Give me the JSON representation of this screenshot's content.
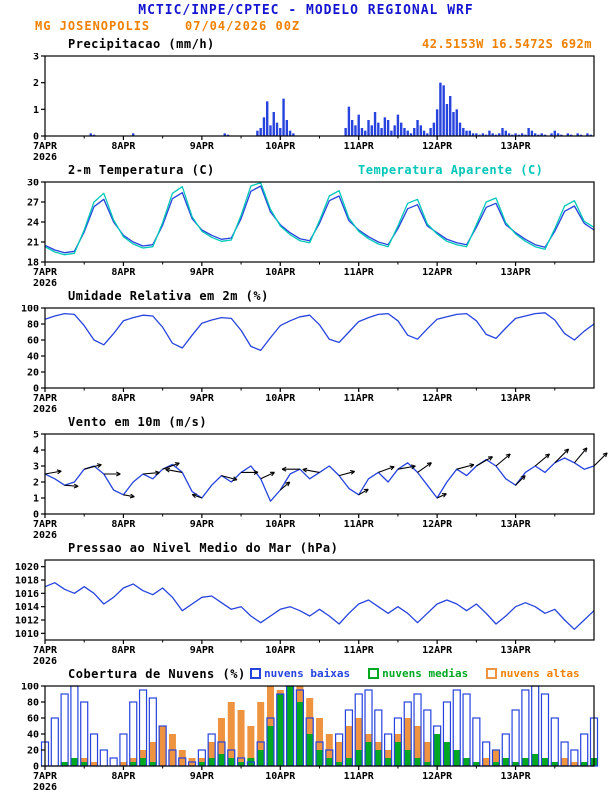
{
  "header": {
    "title": "MCTIC/INPE/CPTEC - MODELO REGIONAL WRF",
    "station": "MG JOSENOPOLIS",
    "run": "07/04/2026 00Z",
    "location": "42.5153W 16.5472S 692m"
  },
  "colors": {
    "title": "#1414d2",
    "accent_orange": "#f08000",
    "line_blue": "#2743de",
    "apparent_cyan": "#00c8b9",
    "cloud_low": "#2743de",
    "cloud_mid": "#00a822",
    "cloud_high": "#ee9440",
    "arrow_black": "#000000"
  },
  "x_axis": {
    "range": [
      0,
      168
    ],
    "tick_hours": [
      0,
      24,
      48,
      72,
      96,
      120,
      144
    ],
    "labels": [
      "7APR",
      "8APR",
      "9APR",
      "10APR",
      "11APR",
      "12APR",
      "13APR"
    ],
    "year_label": "2026"
  },
  "chart_data": [
    {
      "id": "precipitation",
      "type": "bar",
      "title": "Precipitacao (mm/h)",
      "ylim": [
        0,
        3
      ],
      "yticks": [
        0,
        1,
        2,
        3
      ],
      "x_step_hours": 1,
      "color_key": "line_blue",
      "values": [
        0,
        0,
        0,
        0,
        0,
        0,
        0,
        0,
        0,
        0,
        0,
        0,
        0,
        0,
        0.1,
        0.05,
        0,
        0,
        0,
        0,
        0,
        0,
        0,
        0,
        0,
        0,
        0,
        0.1,
        0,
        0,
        0,
        0,
        0,
        0,
        0,
        0,
        0,
        0,
        0,
        0,
        0,
        0,
        0,
        0,
        0,
        0,
        0,
        0,
        0,
        0,
        0,
        0,
        0,
        0,
        0,
        0.1,
        0.05,
        0,
        0,
        0,
        0,
        0,
        0,
        0,
        0,
        0.2,
        0.3,
        0.7,
        1.3,
        0.4,
        0.9,
        0.5,
        0.3,
        1.4,
        0.6,
        0.2,
        0.1,
        0,
        0,
        0,
        0,
        0,
        0,
        0,
        0,
        0,
        0,
        0,
        0,
        0,
        0,
        0,
        0.3,
        1.1,
        0.6,
        0.4,
        0.8,
        0.3,
        0.2,
        0.6,
        0.4,
        0.9,
        0.5,
        0.3,
        0.7,
        0.6,
        0.2,
        0.4,
        0.8,
        0.5,
        0.3,
        0.2,
        0.1,
        0.3,
        0.6,
        0.4,
        0.2,
        0.1,
        0.3,
        0.5,
        1.0,
        2.0,
        1.9,
        1.2,
        1.5,
        0.9,
        1.0,
        0.5,
        0.3,
        0.2,
        0.2,
        0.1,
        0.1,
        0.05,
        0.1,
        0.05,
        0.2,
        0.1,
        0.05,
        0.1,
        0.3,
        0.2,
        0.1,
        0.05,
        0.1,
        0.05,
        0.1,
        0.05,
        0.3,
        0.2,
        0.1,
        0.05,
        0.1,
        0.05,
        0,
        0.1,
        0.2,
        0.1,
        0.05,
        0,
        0.1,
        0.05,
        0,
        0.1,
        0.05,
        0,
        0.1,
        0.05,
        0
      ]
    },
    {
      "id": "temperature",
      "type": "line",
      "title": "2-m Temperatura (C)",
      "ylim": [
        18,
        30
      ],
      "yticks": [
        18,
        21,
        24,
        27,
        30
      ],
      "x_step_hours": 3,
      "series": [
        {
          "name": "2-m Temperatura (C)",
          "color_key": "line_blue",
          "values": [
            20.5,
            19.8,
            19.4,
            19.6,
            22.5,
            26.3,
            27.4,
            24.0,
            22.0,
            21.0,
            20.4,
            20.6,
            23.5,
            27.5,
            28.4,
            24.5,
            22.8,
            22.0,
            21.4,
            21.6,
            24.5,
            28.6,
            29.4,
            25.5,
            23.6,
            22.4,
            21.5,
            21.2,
            23.8,
            27.2,
            27.9,
            24.2,
            22.8,
            21.8,
            21.0,
            20.6,
            23.0,
            26.0,
            26.6,
            23.4,
            22.4,
            21.4,
            20.9,
            20.6,
            23.2,
            26.2,
            26.8,
            23.6,
            22.4,
            21.4,
            20.6,
            20.2,
            22.6,
            25.6,
            26.4,
            23.8,
            22.8
          ]
        },
        {
          "name": "Temperatura Aparente (C)",
          "color_key": "apparent_cyan",
          "values": [
            20.3,
            19.5,
            19.1,
            19.3,
            22.8,
            27.0,
            28.3,
            24.3,
            21.8,
            20.7,
            20.1,
            20.3,
            23.9,
            28.3,
            29.3,
            24.8,
            22.6,
            21.7,
            21.1,
            21.3,
            25.0,
            29.4,
            29.9,
            25.9,
            23.4,
            22.1,
            21.2,
            20.9,
            24.2,
            27.9,
            28.7,
            24.6,
            22.6,
            21.5,
            20.7,
            20.3,
            23.4,
            26.8,
            27.4,
            23.7,
            22.2,
            21.1,
            20.6,
            20.3,
            23.6,
            27.0,
            27.6,
            23.9,
            22.2,
            21.1,
            20.3,
            19.9,
            23.0,
            26.4,
            27.2,
            24.1,
            23.2
          ]
        }
      ]
    },
    {
      "id": "humidity",
      "type": "line",
      "title": "Umidade Relativa em 2m (%)",
      "ylim": [
        0,
        100
      ],
      "yticks": [
        0,
        20,
        40,
        60,
        80,
        100
      ],
      "x_step_hours": 3,
      "series": [
        {
          "name": "Umidade Relativa em 2m (%)",
          "color_key": "line_blue",
          "values": [
            86,
            90,
            93,
            92,
            78,
            60,
            54,
            68,
            84,
            88,
            91,
            90,
            76,
            56,
            50,
            66,
            81,
            85,
            88,
            87,
            72,
            52,
            47,
            63,
            78,
            84,
            89,
            91,
            79,
            61,
            57,
            70,
            83,
            88,
            92,
            93,
            84,
            66,
            61,
            74,
            86,
            89,
            92,
            93,
            84,
            67,
            62,
            75,
            87,
            90,
            93,
            94,
            85,
            68,
            60,
            71,
            80
          ]
        }
      ]
    },
    {
      "id": "wind",
      "type": "line",
      "title": "Vento em 10m (m/s)",
      "ylim": [
        0,
        5
      ],
      "yticks": [
        0,
        1,
        2,
        3,
        4,
        5
      ],
      "x_step_hours": 3,
      "series": [
        {
          "name": "Vento em 10m (m/s)",
          "color_key": "line_blue",
          "values": [
            2.5,
            2.2,
            1.8,
            2.0,
            2.8,
            3.0,
            2.5,
            1.5,
            1.2,
            2.0,
            2.5,
            2.2,
            2.8,
            3.1,
            2.6,
            1.4,
            1.0,
            1.8,
            2.4,
            2.0,
            2.6,
            3.0,
            2.2,
            0.8,
            1.5,
            2.5,
            2.8,
            2.2,
            2.6,
            3.0,
            2.4,
            1.6,
            1.2,
            2.2,
            2.6,
            2.0,
            2.8,
            3.2,
            2.6,
            1.8,
            1.0,
            2.0,
            2.8,
            2.4,
            3.0,
            3.4,
            3.0,
            2.2,
            1.8,
            2.6,
            3.0,
            2.6,
            3.2,
            3.5,
            3.2,
            2.8,
            3.0
          ]
        }
      ],
      "arrows": {
        "step_hours": 6,
        "angles_deg": [
          10,
          -5,
          15,
          0,
          -10,
          5,
          20,
          170,
          160,
          -15,
          0,
          25,
          40,
          180,
          170,
          15,
          30,
          20,
          10,
          35,
          25,
          15,
          30,
          40,
          45,
          40,
          45,
          50,
          45
        ]
      }
    },
    {
      "id": "pressure",
      "type": "line",
      "title": "Pressao ao Nivel Medio do Mar (hPa)",
      "ylim": [
        1009,
        1021
      ],
      "yticks": [
        1010,
        1012,
        1014,
        1016,
        1018,
        1020
      ],
      "x_step_hours": 3,
      "series": [
        {
          "name": "Pressao ao Nivel Medio do Mar (hPa)",
          "color_key": "line_blue",
          "values": [
            1017.0,
            1017.6,
            1016.6,
            1016.0,
            1017.0,
            1016.0,
            1014.4,
            1015.4,
            1016.8,
            1017.4,
            1016.4,
            1015.8,
            1016.8,
            1015.4,
            1013.4,
            1014.4,
            1015.4,
            1015.6,
            1014.6,
            1013.6,
            1014.0,
            1012.6,
            1011.6,
            1012.6,
            1013.6,
            1014.0,
            1013.4,
            1012.6,
            1013.6,
            1012.6,
            1011.4,
            1013.0,
            1014.4,
            1015.0,
            1014.0,
            1013.0,
            1014.0,
            1013.0,
            1011.6,
            1013.0,
            1014.4,
            1015.0,
            1014.4,
            1013.4,
            1014.4,
            1013.0,
            1011.4,
            1012.6,
            1014.0,
            1014.6,
            1014.0,
            1013.0,
            1013.6,
            1012.0,
            1010.6,
            1012.0,
            1013.4
          ]
        }
      ]
    },
    {
      "id": "clouds",
      "type": "bar-multi",
      "title": "Cobertura de Nuvens (%)",
      "ylim": [
        0,
        100
      ],
      "yticks": [
        0,
        20,
        40,
        60,
        80,
        100
      ],
      "x_step_hours": 3,
      "series": [
        {
          "name": "nuvens baixas",
          "style": "outline",
          "color_key": "cloud_low",
          "values": [
            30,
            60,
            90,
            100,
            80,
            40,
            20,
            10,
            40,
            80,
            95,
            85,
            50,
            20,
            10,
            5,
            20,
            40,
            30,
            20,
            10,
            5,
            30,
            60,
            90,
            100,
            95,
            60,
            30,
            20,
            40,
            70,
            90,
            95,
            70,
            40,
            60,
            80,
            90,
            70,
            50,
            80,
            95,
            90,
            60,
            30,
            20,
            40,
            70,
            95,
            100,
            90,
            60,
            30,
            20,
            40,
            60
          ]
        },
        {
          "name": "nuvens medias",
          "style": "fill",
          "color_key": "cloud_mid",
          "values": [
            0,
            0,
            5,
            10,
            5,
            0,
            0,
            0,
            0,
            5,
            10,
            5,
            0,
            0,
            0,
            0,
            5,
            10,
            15,
            10,
            5,
            10,
            20,
            50,
            90,
            100,
            80,
            40,
            20,
            10,
            5,
            10,
            20,
            30,
            20,
            10,
            30,
            20,
            10,
            5,
            40,
            30,
            20,
            10,
            5,
            0,
            5,
            10,
            5,
            10,
            15,
            10,
            5,
            0,
            0,
            5,
            10
          ]
        },
        {
          "name": "nuvens altas",
          "style": "fill",
          "color_key": "cloud_high",
          "values": [
            0,
            0,
            0,
            5,
            10,
            5,
            0,
            0,
            5,
            10,
            20,
            30,
            50,
            40,
            20,
            10,
            10,
            30,
            60,
            80,
            70,
            50,
            80,
            100,
            95,
            90,
            100,
            85,
            60,
            40,
            30,
            50,
            60,
            40,
            30,
            20,
            40,
            60,
            50,
            30,
            20,
            10,
            15,
            10,
            5,
            10,
            20,
            10,
            5,
            10,
            5,
            0,
            5,
            10,
            5,
            0,
            0
          ]
        }
      ]
    }
  ]
}
